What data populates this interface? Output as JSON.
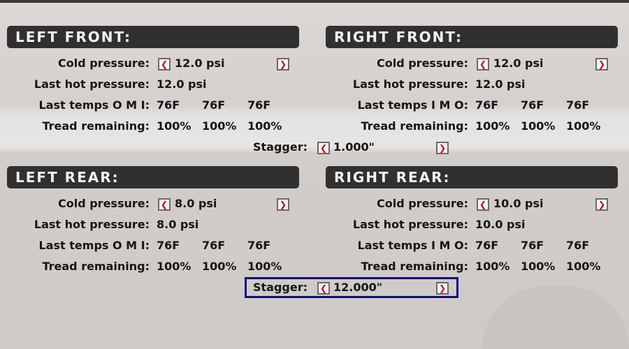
{
  "colors": {
    "header_bg": "#303030",
    "arrow": "#cc0000",
    "selection": "#0a1080"
  },
  "left_front": {
    "title": "LEFT FRONT:",
    "cold_label": "Cold pressure:",
    "cold": "12.0 psi",
    "hot_label": "Last hot pressure:",
    "hot": "12.0 psi",
    "temps_label": "Last temps O M I:",
    "temps": [
      "76F",
      "76F",
      "76F"
    ],
    "tread_label": "Tread remaining:",
    "tread": [
      "100%",
      "100%",
      "100%"
    ]
  },
  "right_front": {
    "title": "RIGHT FRONT:",
    "cold_label": "Cold pressure:",
    "cold": "12.0 psi",
    "hot_label": "Last hot pressure:",
    "hot": "12.0 psi",
    "temps_label": "Last temps I M O:",
    "temps": [
      "76F",
      "76F",
      "76F"
    ],
    "tread_label": "Tread remaining:",
    "tread": [
      "100%",
      "100%",
      "100%"
    ]
  },
  "front_stagger": {
    "label": "Stagger:",
    "value": "1.000\""
  },
  "left_rear": {
    "title": "LEFT REAR:",
    "cold_label": "Cold pressure:",
    "cold": "8.0 psi",
    "hot_label": "Last hot pressure:",
    "hot": "8.0 psi",
    "temps_label": "Last temps O M I:",
    "temps": [
      "76F",
      "76F",
      "76F"
    ],
    "tread_label": "Tread remaining:",
    "tread": [
      "100%",
      "100%",
      "100%"
    ]
  },
  "right_rear": {
    "title": "RIGHT REAR:",
    "cold_label": "Cold pressure:",
    "cold": "10.0 psi",
    "hot_label": "Last hot pressure:",
    "hot": "10.0 psi",
    "temps_label": "Last temps I M O:",
    "temps": [
      "76F",
      "76F",
      "76F"
    ],
    "tread_label": "Tread remaining:",
    "tread": [
      "100%",
      "100%",
      "100%"
    ]
  },
  "rear_stagger": {
    "label": "Stagger:",
    "value": "12.000\""
  },
  "icons": {
    "decrease": "chevron-left-icon",
    "increase": "chevron-right-icon"
  }
}
